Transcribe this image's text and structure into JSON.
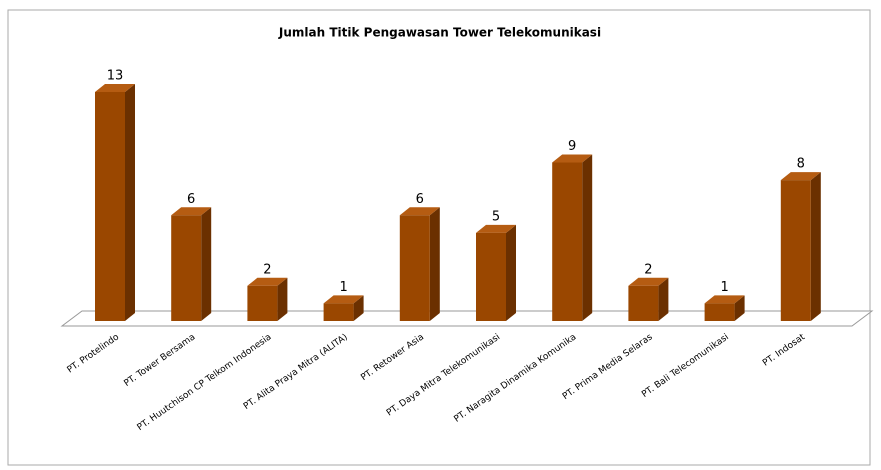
{
  "chart_data": {
    "type": "bar3d",
    "title": "Jumlah Titik Pengawasan Tower Telekomunikasi",
    "categories": [
      "PT. Protelindo",
      "PT. Tower Bersama",
      "PT. Huutchison CP Telkom Indonesia",
      "PT. Alita Praya Mitra (ALITA)",
      "PT. Retower Asia",
      "PT. Daya Mitra Telekomunikasi",
      "PT. Naragita Dinamika Komunika",
      "PT. Prima Media Selaras",
      "PT. Bali Telecomunikasi",
      "PT. Indosat"
    ],
    "values": [
      13,
      6,
      2,
      1,
      6,
      5,
      9,
      2,
      1,
      8
    ],
    "color": "#9a4700"
  }
}
